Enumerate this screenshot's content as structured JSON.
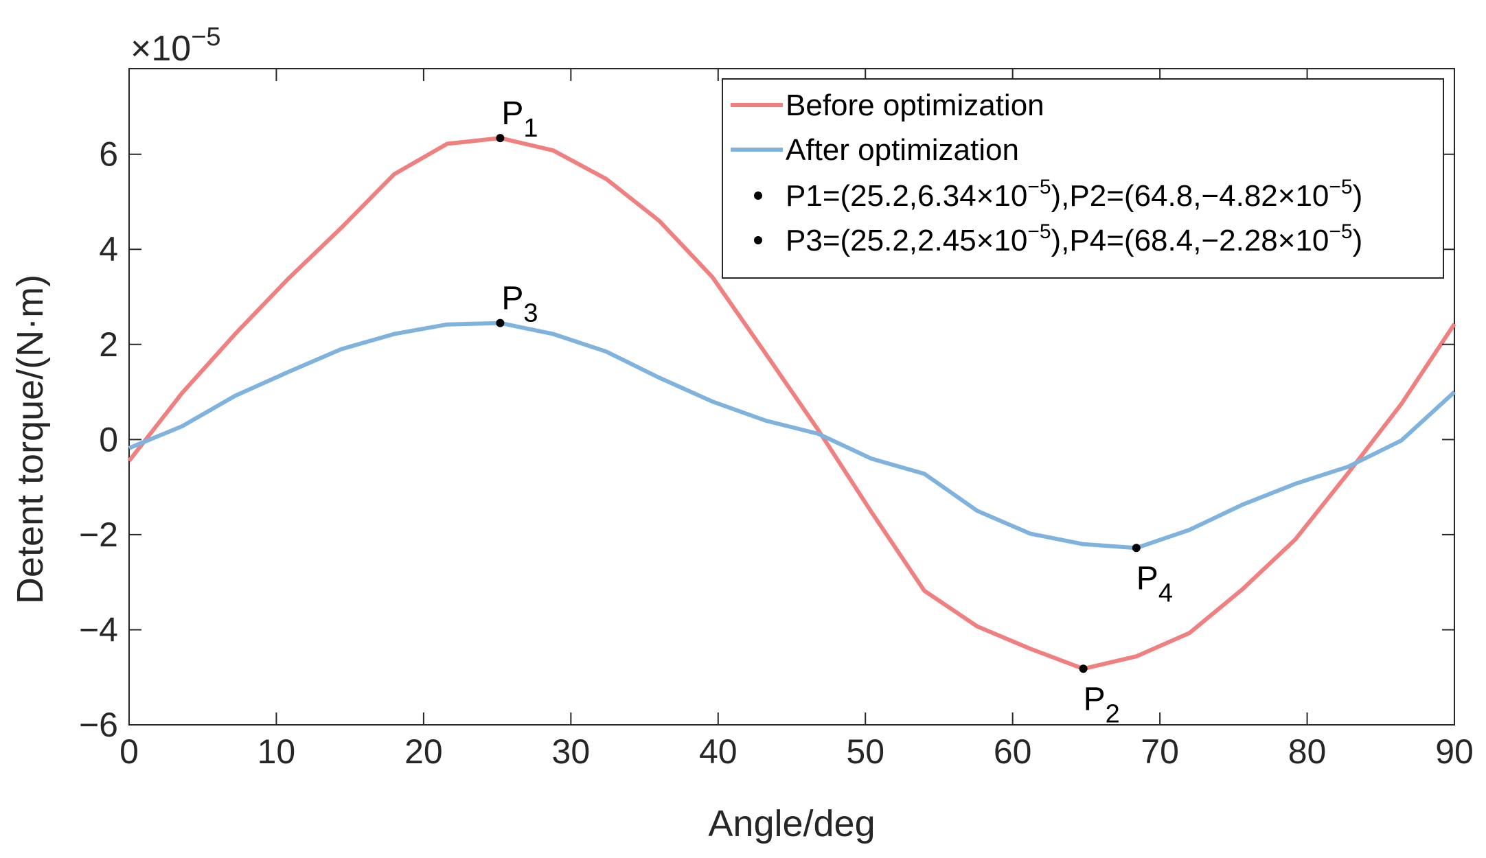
{
  "chart_data": {
    "type": "line",
    "xlabel": "Angle/deg",
    "ylabel": "Detent torque/(N·m)",
    "y_exponent_label": "×10",
    "y_exponent_power": "−5",
    "xlim": [
      0,
      90
    ],
    "ylim": [
      -6,
      7.8
    ],
    "x_ticks": [
      0,
      10,
      20,
      30,
      40,
      50,
      60,
      70,
      80,
      90
    ],
    "y_ticks": [
      -6,
      -4,
      -2,
      0,
      2,
      4,
      6
    ],
    "y_tick_labels": [
      "−6",
      "−4",
      "−2",
      "0",
      "2",
      "4",
      "6"
    ],
    "grid": false,
    "legend_position": "top-right",
    "x": [
      0,
      3.6,
      7.2,
      10.8,
      14.4,
      18,
      21.6,
      25.2,
      28.8,
      32.4,
      36,
      39.6,
      43.2,
      46.8,
      50.4,
      54,
      57.6,
      61.2,
      64.8,
      68.4,
      72,
      75.6,
      79.2,
      82.8,
      86.4,
      90
    ],
    "series": [
      {
        "name": "Before optimization",
        "color": "#f08080",
        "values": [
          -0.45,
          0.98,
          2.22,
          3.38,
          4.45,
          5.58,
          6.22,
          6.34,
          6.08,
          5.48,
          4.6,
          3.42,
          1.82,
          0.2,
          -1.52,
          -3.18,
          -3.93,
          -4.4,
          -4.82,
          -4.56,
          -4.07,
          -3.15,
          -2.1,
          -0.7,
          0.75,
          2.43
        ]
      },
      {
        "name": "After optimization",
        "color": "#7fb3de",
        "values": [
          -0.18,
          0.28,
          0.92,
          1.42,
          1.9,
          2.22,
          2.42,
          2.45,
          2.22,
          1.85,
          1.3,
          0.8,
          0.4,
          0.12,
          -0.4,
          -0.72,
          -1.5,
          -1.98,
          -2.2,
          -2.28,
          -1.9,
          -1.37,
          -0.93,
          -0.57,
          -0.02,
          1.0
        ]
      }
    ],
    "marked_points": [
      {
        "label": "P",
        "sub": "1",
        "x": 25.2,
        "y": 6.34,
        "placement": "above-right"
      },
      {
        "label": "P",
        "sub": "2",
        "x": 64.8,
        "y": -4.82,
        "placement": "below"
      },
      {
        "label": "P",
        "sub": "3",
        "x": 25.2,
        "y": 2.45,
        "placement": "above-right"
      },
      {
        "label": "P",
        "sub": "4",
        "x": 68.4,
        "y": -2.28,
        "placement": "below"
      }
    ],
    "legend_entries": [
      {
        "type": "line",
        "series": 0,
        "text": "Before optimization"
      },
      {
        "type": "line",
        "series": 1,
        "text": "After optimization"
      },
      {
        "type": "marker",
        "parts": [
          "P1=(25.2,6.34×10",
          "−5",
          "),P2=(64.8,−4.82×10",
          "−5",
          ")"
        ]
      },
      {
        "type": "marker",
        "parts": [
          "P3=(25.2,2.45×10",
          "−5",
          "),P4=(68.4,−2.28×10",
          "−5",
          ")"
        ]
      }
    ]
  }
}
